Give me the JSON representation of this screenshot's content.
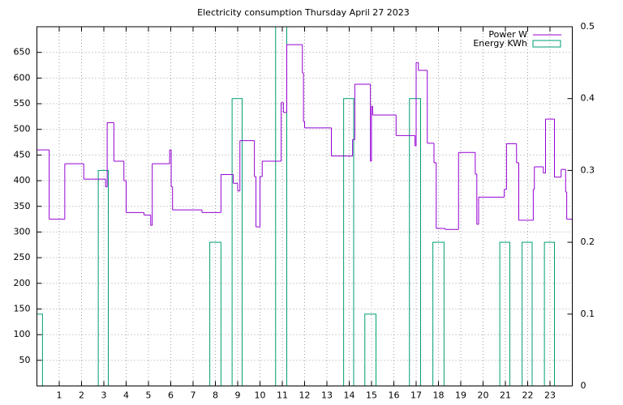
{
  "chart_data": {
    "type": "line",
    "title": "Electricity consumption Thursday April 27 2023",
    "xlim": [
      0,
      24
    ],
    "xticks": [
      1,
      2,
      3,
      4,
      5,
      6,
      7,
      8,
      9,
      10,
      11,
      12,
      13,
      14,
      15,
      16,
      17,
      18,
      19,
      20,
      21,
      22,
      23
    ],
    "ylim": [
      0,
      700
    ],
    "yticks": [
      50,
      100,
      150,
      200,
      250,
      300,
      350,
      400,
      450,
      500,
      550,
      600,
      650
    ],
    "y2lim": [
      0,
      0.5
    ],
    "y2ticks": [
      0,
      0.1,
      0.2,
      0.3,
      0.4,
      0.5
    ],
    "grid": true,
    "legend": "top-right",
    "series": [
      {
        "name": "Power W",
        "color": "#9400d3",
        "style": "steps",
        "x": [
          0,
          0.55,
          1.25,
          2.1,
          3.08,
          3.15,
          3.45,
          3.9,
          4.0,
          4.8,
          5.1,
          5.17,
          5.95,
          6.02,
          6.08,
          7.4,
          8.25,
          8.8,
          9.0,
          9.1,
          9.75,
          9.82,
          10.0,
          10.1,
          10.95,
          11.05,
          11.2,
          11.9,
          11.95,
          12.0,
          13.2,
          14.15,
          14.25,
          14.95,
          15.0,
          15.05,
          16.1,
          16.95,
          17.0,
          17.1,
          17.5,
          17.8,
          17.9,
          18.3,
          18.9,
          19.65,
          19.72,
          19.8,
          20.95,
          21.05,
          21.5,
          21.6,
          22.25,
          22.3,
          22.7,
          22.8,
          23.2,
          23.5,
          23.7,
          23.75
        ],
        "values": [
          460,
          325,
          433,
          403,
          388,
          513,
          438,
          400,
          338,
          333,
          313,
          433,
          460,
          388,
          343,
          338,
          412,
          395,
          380,
          478,
          408,
          310,
          408,
          438,
          552,
          533,
          665,
          610,
          515,
          503,
          448,
          480,
          588,
          438,
          545,
          528,
          488,
          468,
          630,
          615,
          473,
          435,
          307,
          305,
          455,
          413,
          315,
          368,
          383,
          472,
          435,
          323,
          383,
          427,
          415,
          520,
          407,
          422,
          378,
          325
        ]
      },
      {
        "name": "Energy KWh",
        "color": "#009e73",
        "style": "boxes",
        "axis": "y2",
        "x": [
          0,
          2.75,
          7.75,
          8.75,
          10.7,
          13.75,
          14.7,
          16.7,
          17.75,
          20.75,
          21.75,
          22.75
        ],
        "x_end": [
          0.25,
          3.2,
          8.25,
          9.2,
          11.2,
          14.2,
          15.2,
          17.2,
          18.25,
          21.2,
          22.2,
          23.2
        ],
        "values": [
          0.1,
          0.3,
          0.2,
          0.4,
          0.5,
          0.4,
          0.1,
          0.4,
          0.2,
          0.2,
          0.2,
          0.2
        ]
      }
    ]
  }
}
